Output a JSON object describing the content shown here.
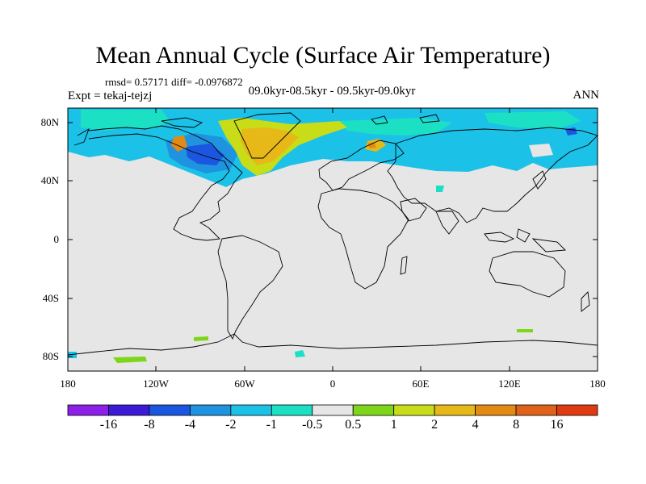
{
  "title": "Mean Annual Cycle (Surface Air Temperature)",
  "stats": "rmsd= 0.57171 diff= -0.0976872",
  "left_label": "Expt = tekaj-tejzj",
  "center_label": "09.0kyr-08.5kyr - 09.5kyr-09.0kyr",
  "right_label": "ANN",
  "lat_ticks": [
    "80N",
    "40N",
    "0",
    "40S",
    "80S"
  ],
  "lon_ticks": [
    "180",
    "120W",
    "60W",
    "0",
    "60E",
    "120E",
    "180"
  ],
  "colorbar": {
    "labels": [
      "-16",
      "-8",
      "-4",
      "-2",
      "-1",
      "-0.5",
      "0.5",
      "1",
      "2",
      "4",
      "8",
      "16"
    ],
    "colors": [
      "#8c1fe8",
      "#3d1ad6",
      "#1a56e0",
      "#1f92e0",
      "#1cc1e8",
      "#1ce0c4",
      "#e6e6e6",
      "#7ed61a",
      "#c8dc18",
      "#e6b818",
      "#e28a14",
      "#e0621a",
      "#e03a12"
    ]
  },
  "colors": {
    "ocean_land_background": "#e6e6e6",
    "coastline": "#000000"
  }
}
